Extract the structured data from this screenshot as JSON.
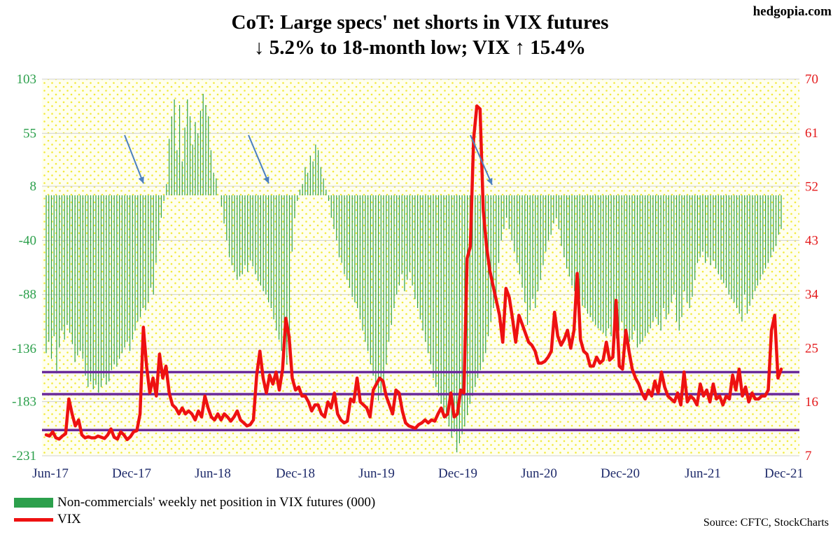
{
  "brand": "hedgopia.com",
  "chart_data": {
    "type": "bar+line",
    "title": "CoT: Large specs' net shorts in VIX futures",
    "subtitle": "↓ 5.2% to 18-month low; VIX ↑ 15.4%",
    "x_ticks": [
      "Jun-17",
      "Dec-17",
      "Jun-18",
      "Dec-18",
      "Jun-19",
      "Dec-19",
      "Jun-20",
      "Dec-20",
      "Jun-21",
      "Dec-21"
    ],
    "left_axis": {
      "ticks": [
        103,
        55,
        8,
        -40,
        -88,
        -136,
        -183,
        -231
      ],
      "range": [
        -231,
        103
      ]
    },
    "right_axis": {
      "ticks": [
        70,
        61,
        52,
        43,
        34,
        25,
        16,
        7
      ],
      "range": [
        7,
        70
      ]
    },
    "horizontal_lines": [
      21,
      17.3,
      11.3
    ],
    "series": [
      {
        "name": "Non-commercials' weekly net position in VIX futures (000)",
        "type": "bar",
        "axis": "left",
        "color": "#2ca04c",
        "values": [
          -140,
          -130,
          -145,
          -125,
          -158,
          -135,
          -120,
          -128,
          -115,
          -122,
          -132,
          -148,
          -142,
          -138,
          -145,
          -160,
          -170,
          -165,
          -172,
          -168,
          -175,
          -170,
          -162,
          -168,
          -165,
          -155,
          -150,
          -152,
          -145,
          -140,
          -135,
          -130,
          -138,
          -128,
          -120,
          -112,
          -108,
          -100,
          -102,
          -95,
          -82,
          -88,
          -60,
          -40,
          -20,
          -5,
          10,
          50,
          70,
          85,
          40,
          80,
          30,
          60,
          85,
          70,
          45,
          65,
          55,
          75,
          90,
          80,
          70,
          40,
          20,
          15,
          0,
          -10,
          -25,
          -40,
          -55,
          -62,
          -68,
          -75,
          -72,
          -70,
          -62,
          -68,
          -58,
          -63,
          -70,
          -76,
          -80,
          -85,
          -88,
          -95,
          -100,
          -110,
          -120,
          -128,
          -138,
          -140,
          -150,
          -140,
          -50,
          -20,
          -5,
          5,
          10,
          25,
          20,
          35,
          30,
          45,
          40,
          25,
          15,
          5,
          -5,
          -20,
          -30,
          -40,
          -55,
          -60,
          -70,
          -75,
          -82,
          -90,
          -95,
          -100,
          -110,
          -120,
          -130,
          -138,
          -150,
          -160,
          -170,
          -182,
          -175,
          -165,
          -150,
          -130,
          -115,
          -100,
          -88,
          -80,
          -70,
          -85,
          -75,
          -68,
          -80,
          -92,
          -100,
          -110,
          -120,
          -130,
          -140,
          -150,
          -162,
          -170,
          -178,
          -185,
          -192,
          -198,
          -205,
          -215,
          -210,
          -228,
          -220,
          -212,
          -205,
          -195,
          -185,
          -178,
          -170,
          -162,
          -155,
          -148,
          -140,
          -125,
          -112,
          -100,
          -88,
          -60,
          -40,
          -30,
          -20,
          -30,
          -40,
          -50,
          -60,
          -70,
          -82,
          -95,
          -115,
          -102,
          -92,
          -100,
          -85,
          -75,
          -62,
          -50,
          -40,
          -35,
          -25,
          -20,
          -30,
          -45,
          -55,
          -65,
          -72,
          -80,
          -85,
          -88,
          -92,
          -98,
          -100,
          -105,
          -108,
          -112,
          -115,
          -118,
          -120,
          -122,
          -125,
          -118,
          -125,
          -130,
          -127,
          -120,
          -112,
          -122,
          -130,
          -130,
          -128,
          -120,
          -135,
          -132,
          -130,
          -125,
          -122,
          -118,
          -112,
          -108,
          -115,
          -120,
          -100,
          -110,
          -105,
          -95,
          -88,
          -112,
          -120,
          -108,
          -85,
          -95,
          -100,
          -90,
          -75,
          -60,
          -55,
          -50,
          -60,
          -55,
          -62,
          -58,
          -65,
          -70,
          -75,
          -78,
          -82,
          -88,
          -92,
          -95,
          -100,
          -105,
          -112,
          -88,
          -105,
          -98,
          -92,
          -85,
          -80,
          -75,
          -70,
          -65,
          -60,
          -55,
          -50,
          -45,
          -35,
          -30
        ]
      },
      {
        "name": "VIX",
        "type": "line",
        "axis": "right",
        "color": "#ee1111",
        "values": [
          10.5,
          10.3,
          11.0,
          10.0,
          9.8,
          10.3,
          10.7,
          16.5,
          14.0,
          12.0,
          13.0,
          10.5,
          10.0,
          10.2,
          10.0,
          10.0,
          10.3,
          10.1,
          9.9,
          10.5,
          11.5,
          10.1,
          9.8,
          11.0,
          10.5,
          9.7,
          10.2,
          11.0,
          11.2,
          14.0,
          28.5,
          22.0,
          17.5,
          20.0,
          17.0,
          24.0,
          20.0,
          22.0,
          17.5,
          15.5,
          15.0,
          14.0,
          15.0,
          14.0,
          14.5,
          14.0,
          13.0,
          14.5,
          13.5,
          17.0,
          15.0,
          13.5,
          13.0,
          14.0,
          13.0,
          14.0,
          13.5,
          12.8,
          13.5,
          14.5,
          13.0,
          12.5,
          12.0,
          12.2,
          13.0,
          20.5,
          24.5,
          20.0,
          17.5,
          20.5,
          19.0,
          21.0,
          18.0,
          21.5,
          30.0,
          27.0,
          20.0,
          18.0,
          18.5,
          17.0,
          17.0,
          16.0,
          14.5,
          15.5,
          15.5,
          14.0,
          13.5,
          16.0,
          15.0,
          17.5,
          14.0,
          13.0,
          12.5,
          12.8,
          16.5,
          16.0,
          20.0,
          16.0,
          15.5,
          15.0,
          13.5,
          18.0,
          19.0,
          20.0,
          19.5,
          17.0,
          15.5,
          14.0,
          18.0,
          17.5,
          14.5,
          12.5,
          12.0,
          11.8,
          11.6,
          12.2,
          12.5,
          13.0,
          12.5,
          13.0,
          12.8,
          14.0,
          15.0,
          13.5,
          14.0,
          17.5,
          13.5,
          14.0,
          18.0,
          17.5,
          40.0,
          42.0,
          60.0,
          65.5,
          65.0,
          48.0,
          42.0,
          38.0,
          35.5,
          33.0,
          30.5,
          26.0,
          35.0,
          33.5,
          30.0,
          26.0,
          30.5,
          29.0,
          27.5,
          26.0,
          25.5,
          24.5,
          22.5,
          22.5,
          22.8,
          23.5,
          24.5,
          31.0,
          27.0,
          25.5,
          26.5,
          28.0,
          25.0,
          28.0,
          37.5,
          26.5,
          24.5,
          24.0,
          22.0,
          22.0,
          23.5,
          22.5,
          23.0,
          26.0,
          23.0,
          23.5,
          33.0,
          22.0,
          21.5,
          28.0,
          24.5,
          21.5,
          20.0,
          19.0,
          17.5,
          16.5,
          18.0,
          17.0,
          19.5,
          17.5,
          21.0,
          18.5,
          17.0,
          16.5,
          16.0,
          17.5,
          15.5,
          21.0,
          16.0,
          17.0,
          16.5,
          15.5,
          19.0,
          17.0,
          18.0,
          16.0,
          19.0,
          16.5,
          17.0,
          15.5,
          17.0,
          16.5,
          20.5,
          18.0,
          21.5,
          17.0,
          18.5,
          16.0,
          17.5,
          16.5,
          16.5,
          17.0,
          17.0,
          18.0,
          28.0,
          30.5,
          20.0,
          21.5
        ]
      }
    ],
    "annotations": [
      "arrow pointing to Dec-17 crossover",
      "arrow pointing to Oct-18 crossover",
      "arrow pointing to Feb-20 crossover"
    ]
  },
  "legend": {
    "bar_label": "Non-commercials' weekly net position in VIX futures (000)",
    "line_label": "VIX"
  },
  "source": "Source: CFTC, StockCharts"
}
